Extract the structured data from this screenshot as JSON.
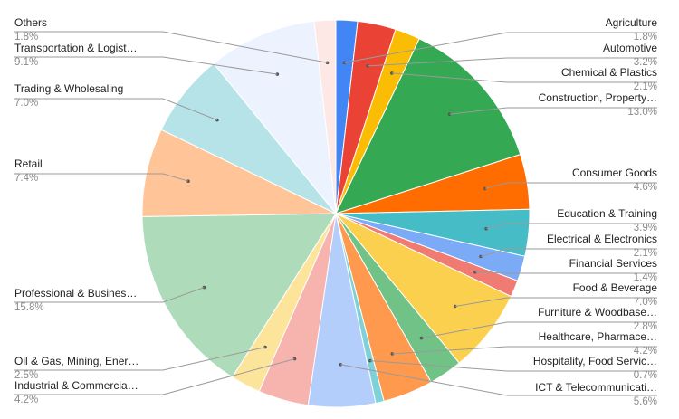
{
  "chart_data": {
    "type": "pie",
    "title": "",
    "start_angle_deg": 0,
    "direction": "clockwise",
    "slices": [
      {
        "label": "Agriculture",
        "display_label": "Agriculture",
        "value": 1.8,
        "value_label": "1.8%",
        "color": "#4285F4"
      },
      {
        "label": "Automotive",
        "display_label": "Automotive",
        "value": 3.2,
        "value_label": "3.2%",
        "color": "#EA4335"
      },
      {
        "label": "Chemical & Plastics",
        "display_label": "Chemical & Plastics",
        "value": 2.1,
        "value_label": "2.1%",
        "color": "#FBBC04"
      },
      {
        "label": "Construction, Property",
        "display_label": "Construction, Property…",
        "value": 13.0,
        "value_label": "13.0%",
        "color": "#34A853"
      },
      {
        "label": "Consumer Goods",
        "display_label": "Consumer Goods",
        "value": 4.6,
        "value_label": "4.6%",
        "color": "#FF6D01"
      },
      {
        "label": "Education & Training",
        "display_label": "Education & Training",
        "value": 3.9,
        "value_label": "3.9%",
        "color": "#46BDC6"
      },
      {
        "label": "Electrical & Electronics",
        "display_label": "Electrical & Electronics",
        "value": 2.1,
        "value_label": "2.1%",
        "color": "#7BAAF7"
      },
      {
        "label": "Financial Services",
        "display_label": "Financial Services",
        "value": 1.4,
        "value_label": "1.4%",
        "color": "#F07B72"
      },
      {
        "label": "Food & Beverage",
        "display_label": "Food & Beverage",
        "value": 7.0,
        "value_label": "7.0%",
        "color": "#FCD04F"
      },
      {
        "label": "Furniture & Woodbase",
        "display_label": "Furniture & Woodbase…",
        "value": 2.8,
        "value_label": "2.8%",
        "color": "#71C287"
      },
      {
        "label": "Healthcare, Pharmace",
        "display_label": "Healthcare, Pharmace…",
        "value": 4.2,
        "value_label": "4.2%",
        "color": "#FF994D"
      },
      {
        "label": "Hospitality, Food Servic",
        "display_label": "Hospitality, Food Servic…",
        "value": 0.7,
        "value_label": "0.7%",
        "color": "#7ED1D7"
      },
      {
        "label": "ICT & Telecommunicati",
        "display_label": "ICT & Telecommunicati…",
        "value": 5.6,
        "value_label": "5.6%",
        "color": "#B3CEFB"
      },
      {
        "label": "Industrial & Commercia",
        "display_label": "Industrial & Commercia…",
        "value": 4.2,
        "value_label": "4.2%",
        "color": "#F7B4AE"
      },
      {
        "label": "Oil & Gas, Mining, Ener",
        "display_label": "Oil & Gas, Mining, Ener…",
        "value": 2.5,
        "value_label": "2.5%",
        "color": "#FDE49B"
      },
      {
        "label": "Professional & Busines",
        "display_label": "Professional & Busines…",
        "value": 15.8,
        "value_label": "15.8%",
        "color": "#AEDCBA"
      },
      {
        "label": "Retail",
        "display_label": "Retail",
        "value": 7.4,
        "value_label": "7.4%",
        "color": "#FFC599"
      },
      {
        "label": "Trading & Wholesaling",
        "display_label": "Trading & Wholesaling",
        "value": 7.0,
        "value_label": "7.0%",
        "color": "#B5E3E8"
      },
      {
        "label": "Transportation & Logist",
        "display_label": "Transportation & Logist…",
        "value": 9.1,
        "value_label": "9.1%",
        "color": "#ECF2FE"
      },
      {
        "label": "Others",
        "display_label": "Others",
        "value": 1.8,
        "value_label": "1.8%",
        "color": "#FDE8E6"
      }
    ],
    "legend": "none",
    "labels": "outside with leader lines"
  }
}
